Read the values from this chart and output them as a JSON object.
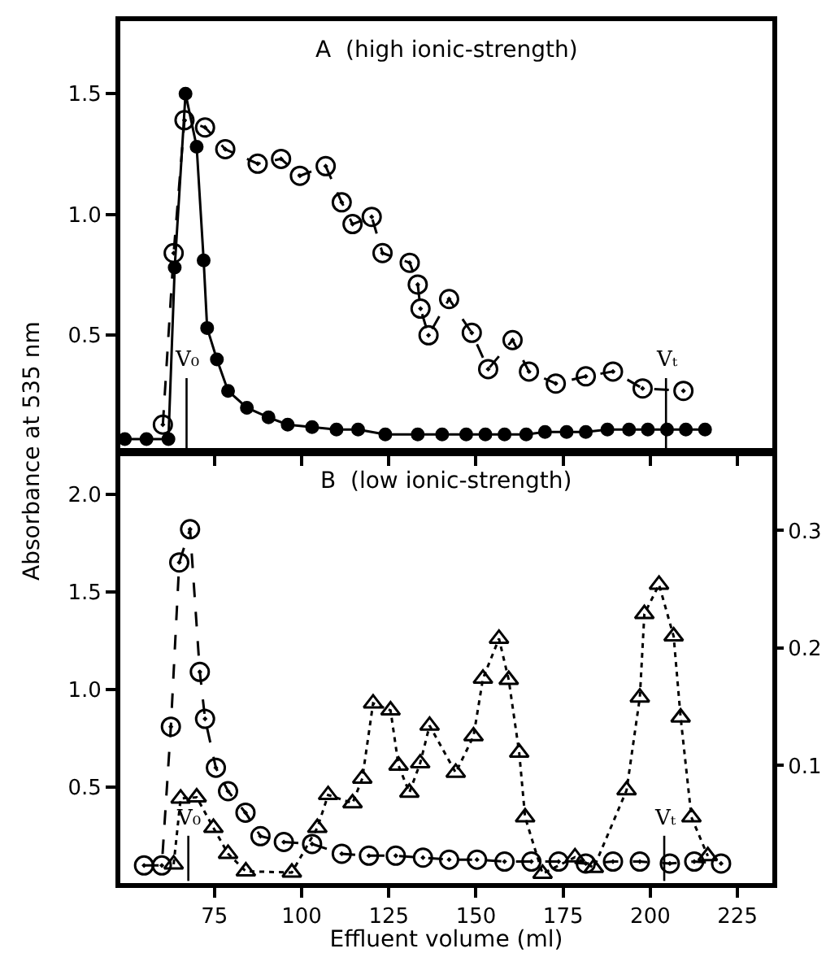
{
  "chart_data": [
    {
      "type": "line",
      "title": "A  (high ionic-strength)",
      "ylabel": "Absorbance at 535 nm",
      "xlim": [
        48,
        235
      ],
      "ylim": [
        0.02,
        1.8
      ],
      "xticks": [
        {
          "value": 75,
          "label": null
        },
        {
          "value": 100,
          "label": null
        },
        {
          "value": 125,
          "label": null
        },
        {
          "value": 150,
          "label": null
        },
        {
          "value": 175,
          "label": null
        },
        {
          "value": 200,
          "label": null
        },
        {
          "value": 225,
          "label": null
        }
      ],
      "yticks": [
        {
          "value": 0.5,
          "label": "0.5"
        },
        {
          "value": 1.0,
          "label": "1.0"
        },
        {
          "value": 1.5,
          "label": "1.5"
        }
      ],
      "tick_labels": "y",
      "grid": false,
      "series": [
        {
          "color": "#000000",
          "marker": "circle-open",
          "line_style": "dashed",
          "x": [
            60.2,
            63.3,
            66.4,
            72.3,
            78.1,
            87.4,
            94.1,
            99.5,
            106.9,
            111.5,
            114.6,
            120.1,
            123.2,
            131,
            133.3,
            134.1,
            136.4,
            142.3,
            148.8,
            153.5,
            160.5,
            165.2,
            172.9,
            181.5,
            189.3,
            197.8,
            209.5
          ],
          "values": [
            0.13,
            0.84,
            1.39,
            1.36,
            1.27,
            1.21,
            1.23,
            1.16,
            1.2,
            1.05,
            0.96,
            0.99,
            0.84,
            0.8,
            0.71,
            0.61,
            0.5,
            0.65,
            0.51,
            0.36,
            0.48,
            0.35,
            0.3,
            0.33,
            0.35,
            0.28,
            0.27
          ]
        },
        {
          "color": "#000000",
          "marker": "circle",
          "line_style": "solid",
          "x": [
            49.3,
            55.5,
            61.8,
            63.6,
            66.7,
            69.9,
            71.9,
            72.9,
            75.7,
            78.9,
            84.3,
            90.5,
            96,
            103,
            110,
            116.2,
            124,
            133.3,
            140.3,
            147.2,
            152.7,
            158.2,
            164.4,
            169.8,
            176,
            181.5,
            187.7,
            193.9,
            199.3,
            204.8,
            210.2,
            215.7
          ],
          "values": [
            0.07,
            0.07,
            0.07,
            0.78,
            1.5,
            1.28,
            0.81,
            0.53,
            0.4,
            0.27,
            0.2,
            0.16,
            0.13,
            0.12,
            0.11,
            0.11,
            0.09,
            0.09,
            0.09,
            0.09,
            0.09,
            0.09,
            0.09,
            0.1,
            0.1,
            0.1,
            0.11,
            0.11,
            0.11,
            0.11,
            0.11,
            0.11
          ]
        }
      ],
      "ref_lines": [
        {
          "axis": "x",
          "value": 67,
          "label": "V₀"
        },
        {
          "axis": "x",
          "value": 204.5,
          "label": "Vₜ"
        }
      ]
    },
    {
      "type": "line",
      "title": "B  (low ionic-strength)",
      "xlabel": "Effluent volume (ml)",
      "xlim": [
        48,
        235
      ],
      "ylim": [
        0.01,
        2.21
      ],
      "y2lim": [
        0,
        0.366
      ],
      "xticks": [
        75,
        100,
        125,
        150,
        175,
        200,
        225
      ],
      "yticks": [
        {
          "value": 0.5,
          "label": "0.5"
        },
        {
          "value": 1.0,
          "label": "1.0"
        },
        {
          "value": 1.5,
          "label": "1.5"
        },
        {
          "value": 2.0,
          "label": "2.0"
        }
      ],
      "y2ticks": [
        {
          "value": 0.1,
          "label": "0.1"
        },
        {
          "value": 0.2,
          "label": "0.2"
        },
        {
          "value": 0.3,
          "label": "0.3"
        }
      ],
      "grid": false,
      "series": [
        {
          "color": "#000000",
          "marker": "circle-open",
          "line_style": "dashed",
          "x": [
            54.8,
            59.9,
            62.5,
            64.9,
            68,
            70.8,
            72.3,
            75.4,
            78.9,
            83.9,
            88.2,
            94.9,
            103,
            111.5,
            119.3,
            127,
            134.8,
            142.3,
            150.3,
            158.2,
            165.9,
            173.7,
            181.5,
            189.3,
            197,
            205.6,
            212.6,
            220.3
          ],
          "values": [
            0.1,
            0.1,
            0.81,
            1.65,
            1.82,
            1.09,
            0.85,
            0.6,
            0.48,
            0.37,
            0.25,
            0.22,
            0.21,
            0.16,
            0.15,
            0.15,
            0.14,
            0.13,
            0.13,
            0.12,
            0.12,
            0.12,
            0.11,
            0.12,
            0.12,
            0.11,
            0.12,
            0.11
          ]
        },
        {
          "color": "#000000",
          "marker": "triangle",
          "line_style": "dotted",
          "axis": "y2",
          "x": [
            63.3,
            65.3,
            69.9,
            74.7,
            78.9,
            84,
            97.2,
            104.5,
            107.6,
            114.6,
            117.4,
            120.5,
            125.5,
            127.8,
            130.9,
            134,
            136.7,
            144.2,
            149.3,
            152,
            156.6,
            159.4,
            162.4,
            164.1,
            169.1,
            178.4,
            183.8,
            193.2,
            197,
            198.3,
            202.5,
            206.7,
            208.7,
            211.8,
            216.5
          ],
          "values": [
            0.016,
            0.072,
            0.073,
            0.047,
            0.025,
            0.01,
            0.009,
            0.047,
            0.075,
            0.068,
            0.089,
            0.153,
            0.147,
            0.1,
            0.077,
            0.102,
            0.134,
            0.094,
            0.125,
            0.174,
            0.208,
            0.173,
            0.111,
            0.056,
            0.008,
            0.022,
            0.013,
            0.079,
            0.158,
            0.229,
            0.254,
            0.21,
            0.141,
            0.056,
            0.023
          ]
        }
      ],
      "ref_lines": [
        {
          "axis": "x",
          "value": 67.5,
          "label": "V₀"
        },
        {
          "axis": "x",
          "value": 204,
          "label": "Vₜ"
        }
      ]
    }
  ]
}
